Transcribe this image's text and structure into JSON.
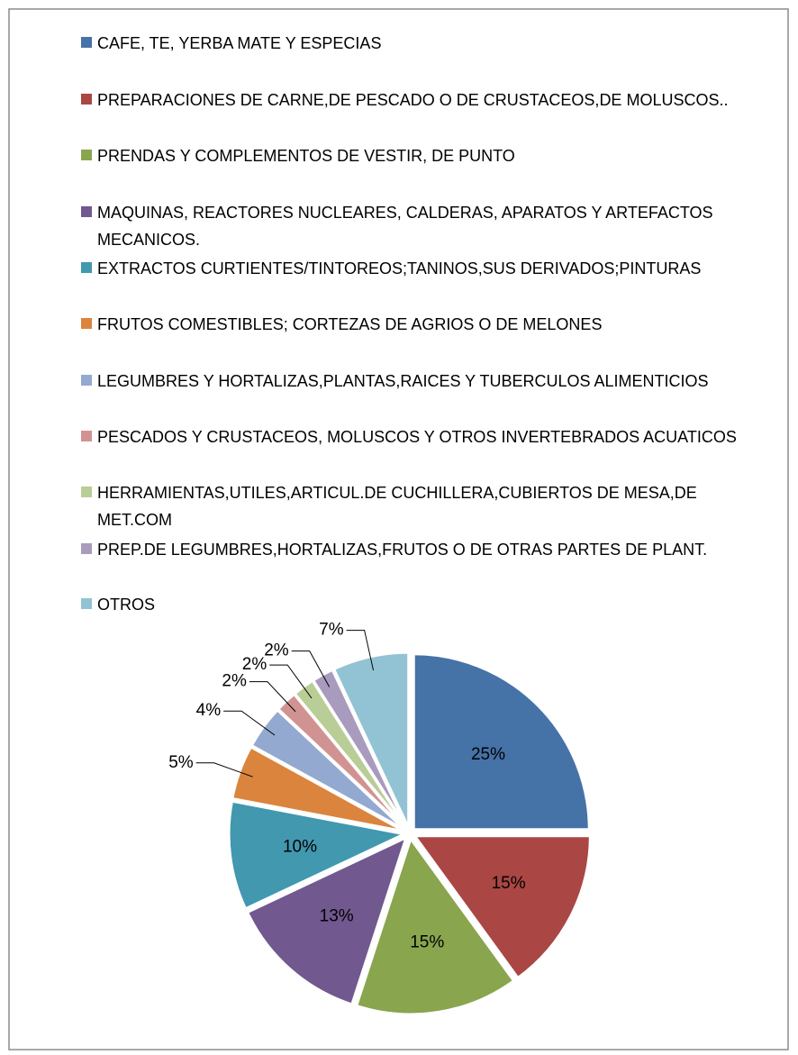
{
  "chart_data": {
    "type": "pie",
    "categories": [
      "CAFE, TE, YERBA MATE Y ESPECIAS",
      "PREPARACIONES DE CARNE,DE PESCADO O DE CRUSTACEOS,DE MOLUSCOS..",
      "PRENDAS Y COMPLEMENTOS DE VESTIR, DE PUNTO",
      "MAQUINAS, REACTORES NUCLEARES, CALDERAS, APARATOS Y ARTEFACTOS MECANICOS.",
      "EXTRACTOS CURTIENTES/TINTOREOS;TANINOS,SUS DERIVADOS;PINTURAS",
      "FRUTOS COMESTIBLES; CORTEZAS DE AGRIOS O DE MELONES",
      "LEGUMBRES Y HORTALIZAS,PLANTAS,RAICES Y TUBERCULOS ALIMENTICIOS",
      "PESCADOS Y CRUSTACEOS, MOLUSCOS Y OTROS INVERTEBRADOS ACUATICOS",
      "HERRAMIENTAS,UTILES,ARTICUL.DE CUCHILLERA,CUBIERTOS DE MESA,DE MET.COM",
      "PREP.DE LEGUMBRES,HORTALIZAS,FRUTOS O DE OTRAS PARTES DE PLANT.",
      "OTROS"
    ],
    "values": [
      25,
      15,
      15,
      13,
      10,
      5,
      4,
      2,
      2,
      2,
      7
    ],
    "value_labels": [
      "25%",
      "15%",
      "15%",
      "13%",
      "10%",
      "5%",
      "4%",
      "2%",
      "2%",
      "2%",
      "7%"
    ],
    "colors": [
      "#4572a7",
      "#aa4643",
      "#89a54e",
      "#71588f",
      "#4198af",
      "#db843d",
      "#93a9cf",
      "#d19392",
      "#b9cd96",
      "#a99bbd",
      "#92c3d4"
    ],
    "legend": "top"
  }
}
